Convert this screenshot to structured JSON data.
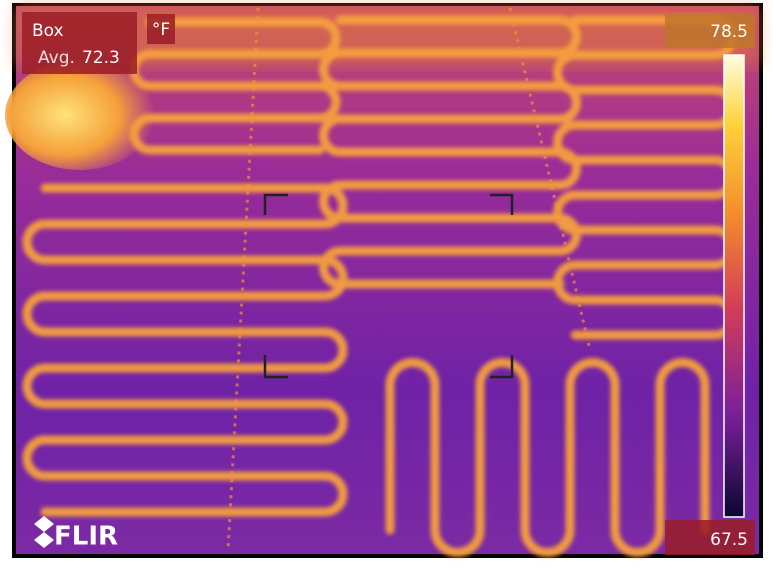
{
  "measurement": {
    "label": "Box",
    "avg_label": "Avg.",
    "avg": 72.3
  },
  "unit": "°F",
  "scale": {
    "max": 78.5,
    "min": 67.5
  },
  "brand": "FLIR"
}
